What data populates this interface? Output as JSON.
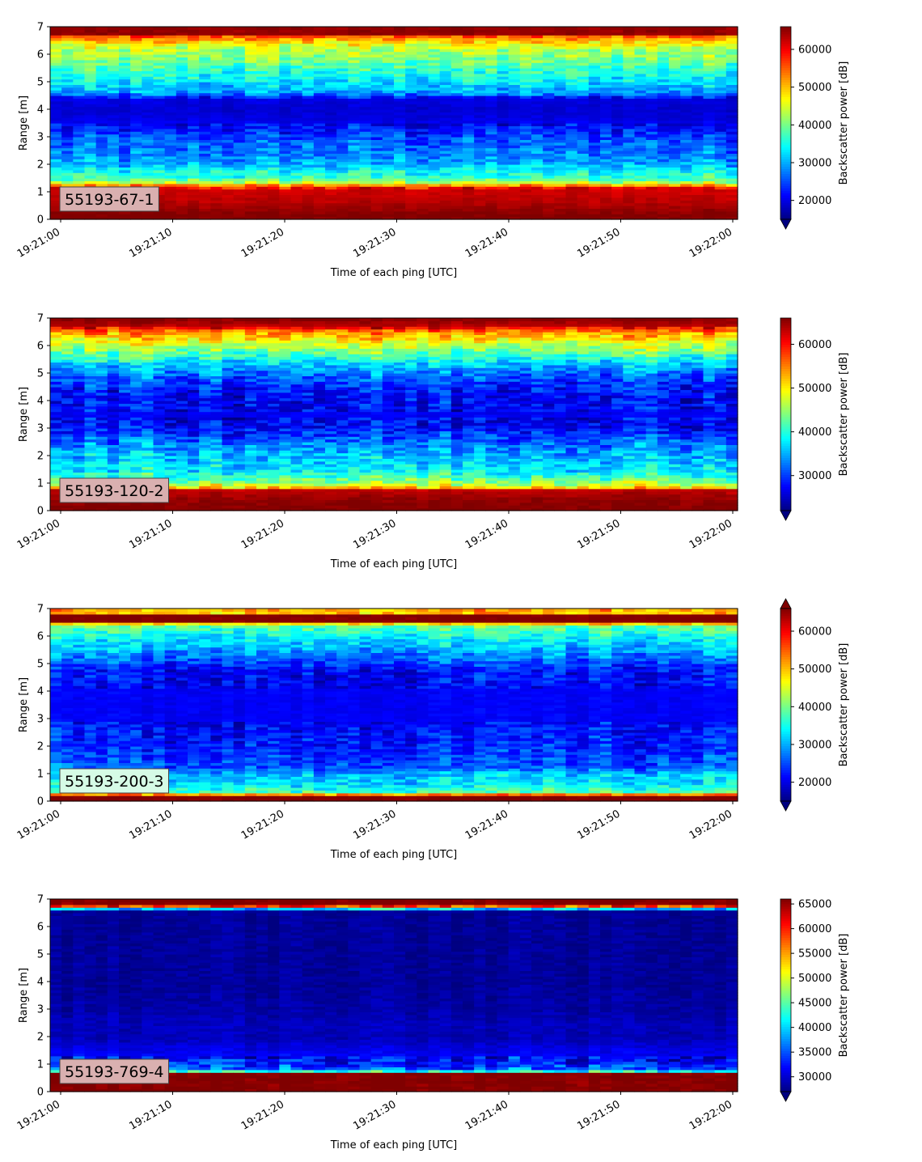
{
  "figure": {
    "colormap": "jet",
    "background": "#ffffff"
  },
  "chart_data": [
    {
      "type": "heatmap",
      "label_box": "55193-67-1",
      "label_box_color": "#d9b0b0",
      "xlabel": "Time of each ping [UTC]",
      "ylabel": "Range [m]",
      "colorbar_label": "Backscatter power [dB]",
      "x_ticks": [
        "19:21:00",
        "19:21:10",
        "19:21:20",
        "19:21:30",
        "19:21:40",
        "19:21:50",
        "19:22:00"
      ],
      "y_ticks": [
        0,
        1,
        2,
        3,
        4,
        5,
        6,
        7
      ],
      "ylim": [
        0,
        7
      ],
      "clim": [
        15000,
        66000
      ],
      "colorbar_ticks": [
        20000,
        30000,
        40000,
        50000,
        60000
      ],
      "colorbar_extend": "min",
      "profile": [
        [
          0.2,
          66000
        ],
        [
          0.3,
          65000
        ],
        [
          0.7,
          63000
        ],
        [
          1.1,
          62000
        ],
        [
          1.2,
          57000
        ],
        [
          1.35,
          43000
        ],
        [
          1.5,
          37000
        ],
        [
          1.8,
          34000
        ],
        [
          2.0,
          30000
        ],
        [
          2.3,
          28000
        ],
        [
          2.8,
          26000
        ],
        [
          3.2,
          23000
        ],
        [
          3.6,
          20000
        ],
        [
          4.0,
          19000
        ],
        [
          4.4,
          20000
        ],
        [
          4.6,
          29000
        ],
        [
          5.0,
          33000
        ],
        [
          5.4,
          36000
        ],
        [
          5.8,
          40000
        ],
        [
          6.2,
          43000
        ],
        [
          6.5,
          50000
        ],
        [
          6.65,
          55000
        ],
        [
          6.75,
          65000
        ],
        [
          7.0,
          65000
        ]
      ]
    },
    {
      "type": "heatmap",
      "label_box": "55193-120-2",
      "label_box_color": "#d9b0b0",
      "xlabel": "Time of each ping [UTC]",
      "ylabel": "Range [m]",
      "colorbar_label": "Backscatter power [dB]",
      "x_ticks": [
        "19:21:00",
        "19:21:10",
        "19:21:20",
        "19:21:30",
        "19:21:40",
        "19:21:50",
        "19:22:00"
      ],
      "y_ticks": [
        0,
        1,
        2,
        3,
        4,
        5,
        6,
        7
      ],
      "ylim": [
        0,
        7
      ],
      "clim": [
        22000,
        66000
      ],
      "colorbar_ticks": [
        30000,
        40000,
        50000,
        60000
      ],
      "colorbar_extend": "min",
      "profile": [
        [
          0.2,
          66000
        ],
        [
          0.5,
          65000
        ],
        [
          0.8,
          63000
        ],
        [
          0.85,
          52000
        ],
        [
          1.0,
          46000
        ],
        [
          1.2,
          42000
        ],
        [
          1.5,
          38000
        ],
        [
          2.0,
          36000
        ],
        [
          2.5,
          33000
        ],
        [
          3.0,
          28000
        ],
        [
          3.5,
          27000
        ],
        [
          4.0,
          28000
        ],
        [
          4.5,
          29000
        ],
        [
          5.0,
          33000
        ],
        [
          5.4,
          38000
        ],
        [
          5.8,
          44000
        ],
        [
          6.2,
          50000
        ],
        [
          6.5,
          55000
        ],
        [
          6.75,
          64000
        ],
        [
          7.0,
          66000
        ]
      ]
    },
    {
      "type": "heatmap",
      "label_box": "55193-200-3",
      "label_box_color": "#d6fbe6",
      "xlabel": "Time of each ping [UTC]",
      "ylabel": "Range [m]",
      "colorbar_label": "Backscatter power [dB]",
      "x_ticks": [
        "19:21:00",
        "19:21:10",
        "19:21:20",
        "19:21:30",
        "19:21:40",
        "19:21:50",
        "19:22:00"
      ],
      "y_ticks": [
        0,
        1,
        2,
        3,
        4,
        5,
        6,
        7
      ],
      "ylim": [
        0,
        7
      ],
      "clim": [
        15000,
        66000
      ],
      "colorbar_ticks": [
        20000,
        30000,
        40000,
        50000,
        60000
      ],
      "colorbar_extend": "both",
      "profile": [
        [
          0.05,
          15000
        ],
        [
          0.2,
          60000
        ],
        [
          0.35,
          38000
        ],
        [
          0.6,
          33000
        ],
        [
          1.0,
          31000
        ],
        [
          1.2,
          26000
        ],
        [
          2.0,
          23000
        ],
        [
          3.0,
          21000
        ],
        [
          4.0,
          21000
        ],
        [
          4.8,
          22000
        ],
        [
          5.2,
          27000
        ],
        [
          5.6,
          31000
        ],
        [
          6.0,
          34000
        ],
        [
          6.4,
          40000
        ],
        [
          6.55,
          66000
        ],
        [
          6.75,
          66000
        ],
        [
          6.85,
          50000
        ],
        [
          7.0,
          52000
        ]
      ]
    },
    {
      "type": "heatmap",
      "label_box": "55193-769-4",
      "label_box_color": "#d9b0b0",
      "xlabel": "Time of each ping [UTC]",
      "ylabel": "Range [m]",
      "colorbar_label": "Backscatter power [dB]",
      "x_ticks": [
        "19:21:00",
        "19:21:10",
        "19:21:20",
        "19:21:30",
        "19:21:40",
        "19:21:50",
        "19:22:00"
      ],
      "y_ticks": [
        0,
        1,
        2,
        3,
        4,
        5,
        6,
        7
      ],
      "ylim": [
        0,
        7
      ],
      "clim": [
        27000,
        66000
      ],
      "colorbar_ticks": [
        30000,
        35000,
        40000,
        45000,
        50000,
        55000,
        60000,
        65000
      ],
      "colorbar_extend": "min",
      "profile": [
        [
          0.2,
          66000
        ],
        [
          0.65,
          66000
        ],
        [
          0.7,
          46000
        ],
        [
          0.85,
          35000
        ],
        [
          1.2,
          32000
        ],
        [
          1.5,
          31000
        ],
        [
          2.0,
          29000
        ],
        [
          2.4,
          29500
        ],
        [
          3.0,
          28500
        ],
        [
          4.0,
          28000
        ],
        [
          5.0,
          28000
        ],
        [
          6.0,
          28000
        ],
        [
          6.6,
          28000
        ],
        [
          6.7,
          52000
        ],
        [
          6.8,
          66000
        ],
        [
          7.0,
          66000
        ]
      ]
    }
  ]
}
